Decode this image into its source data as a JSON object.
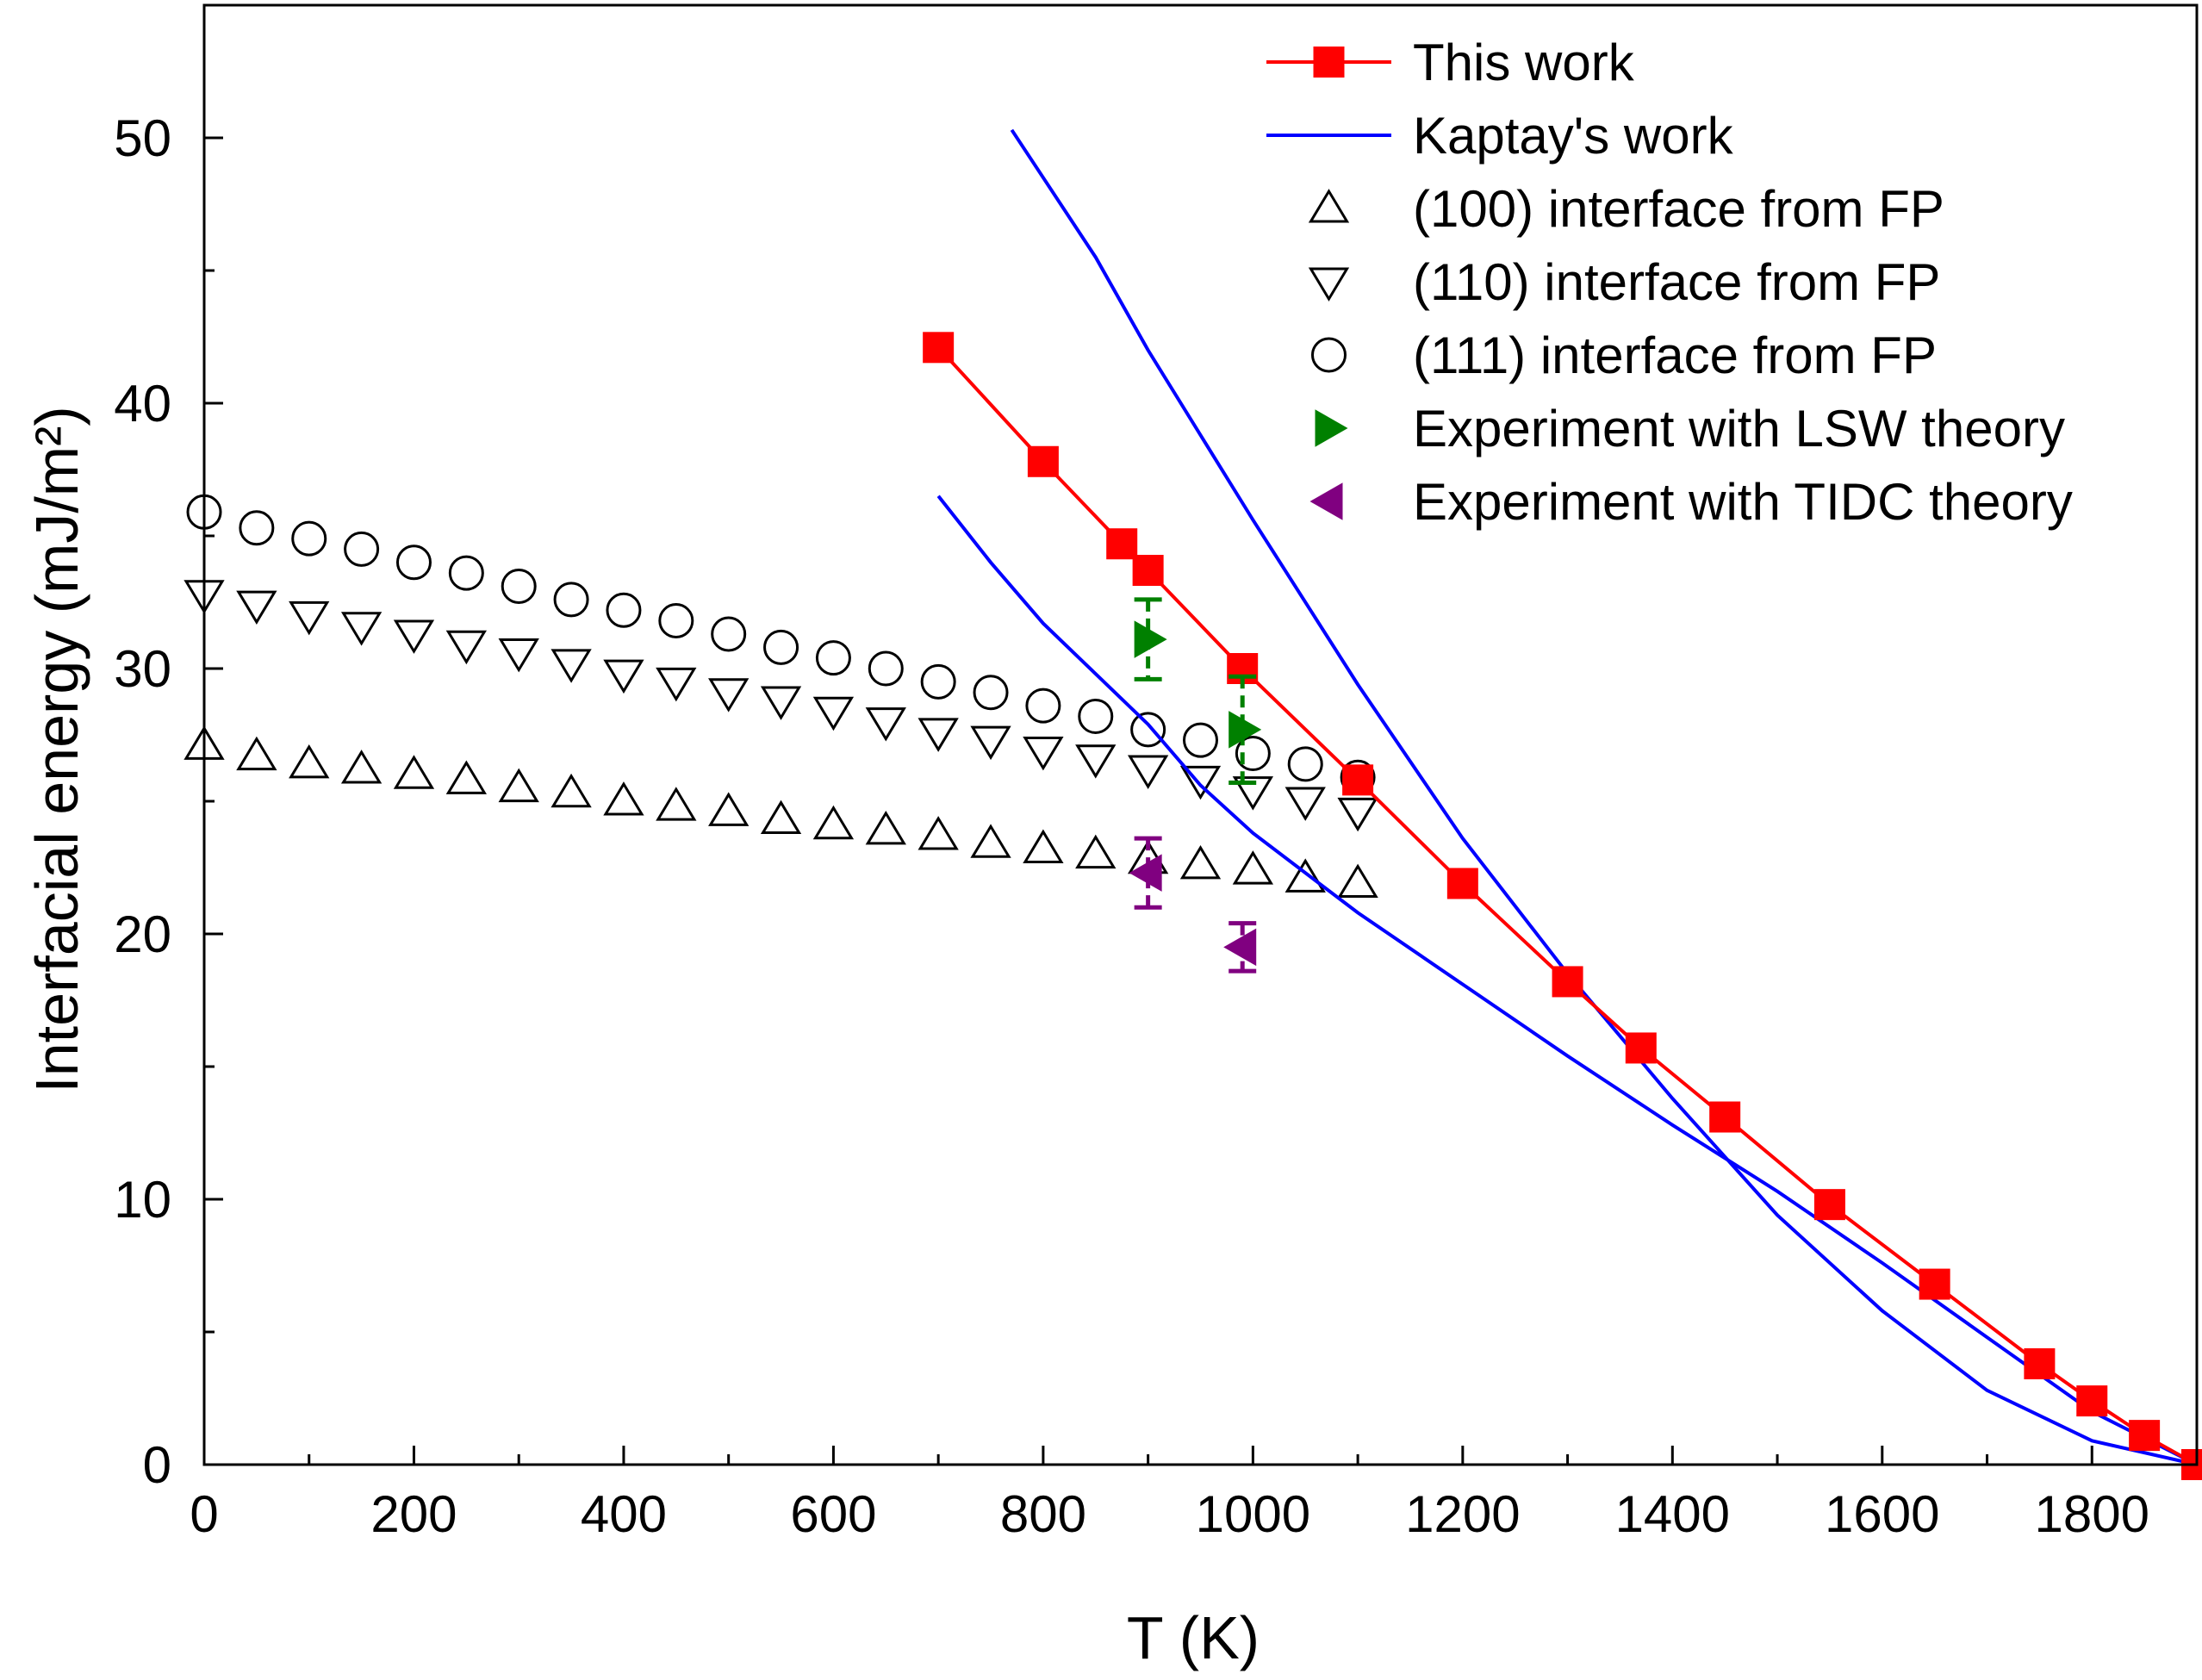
{
  "chart_data": {
    "type": "scatter",
    "xlabel": "T (K)",
    "ylabel": "Interfacial energy (mJ/m²)",
    "xlim": [
      0,
      1900
    ],
    "ylim": [
      0,
      55
    ],
    "x_ticks": [
      0,
      200,
      400,
      600,
      800,
      1000,
      1200,
      1400,
      1600,
      1800
    ],
    "y_ticks": [
      0,
      10,
      20,
      30,
      40,
      50
    ],
    "legend_position": "top-right",
    "series": [
      {
        "name": "This work",
        "kind": "line-marker",
        "marker": "square",
        "color": "#ff0000",
        "points": [
          [
            700,
            42.1
          ],
          [
            800,
            37.8
          ],
          [
            875,
            34.7
          ],
          [
            900,
            33.7
          ],
          [
            990,
            30.0
          ],
          [
            1100,
            25.8
          ],
          [
            1200,
            21.9
          ],
          [
            1300,
            18.2
          ],
          [
            1370,
            15.7
          ],
          [
            1450,
            13.1
          ],
          [
            1550,
            9.8
          ],
          [
            1650,
            6.8
          ],
          [
            1750,
            3.8
          ],
          [
            1800,
            2.4
          ],
          [
            1850,
            1.1
          ],
          [
            1900,
            0.0
          ]
        ]
      },
      {
        "name": "Kaptay's work",
        "kind": "line",
        "color": "#0000ff",
        "curves": [
          [
            [
              770,
              50.3
            ],
            [
              800,
              48.5
            ],
            [
              850,
              45.5
            ],
            [
              900,
              42.0
            ],
            [
              950,
              38.8
            ],
            [
              1000,
              35.6
            ],
            [
              1100,
              29.4
            ],
            [
              1200,
              23.6
            ],
            [
              1300,
              18.5
            ],
            [
              1400,
              13.8
            ],
            [
              1500,
              9.4
            ],
            [
              1600,
              5.8
            ],
            [
              1700,
              2.8
            ],
            [
              1800,
              0.9
            ],
            [
              1900,
              0.0
            ]
          ],
          [
            [
              700,
              36.5
            ],
            [
              750,
              34.0
            ],
            [
              800,
              31.7
            ],
            [
              850,
              29.8
            ],
            [
              900,
              27.9
            ],
            [
              950,
              25.6
            ],
            [
              1000,
              23.8
            ],
            [
              1100,
              20.8
            ],
            [
              1200,
              18.1
            ],
            [
              1300,
              15.4
            ],
            [
              1400,
              12.8
            ],
            [
              1500,
              10.3
            ],
            [
              1600,
              7.6
            ],
            [
              1700,
              4.8
            ],
            [
              1800,
              2.0
            ],
            [
              1900,
              0.0
            ]
          ]
        ]
      },
      {
        "name": "(100) interface from FP",
        "kind": "marker",
        "marker": "triangle-up-open",
        "color": "#000000",
        "points": [
          [
            0,
            27.1
          ],
          [
            50,
            26.7
          ],
          [
            100,
            26.4
          ],
          [
            150,
            26.2
          ],
          [
            200,
            26.0
          ],
          [
            250,
            25.8
          ],
          [
            300,
            25.5
          ],
          [
            350,
            25.3
          ],
          [
            400,
            25.0
          ],
          [
            450,
            24.8
          ],
          [
            500,
            24.6
          ],
          [
            550,
            24.3
          ],
          [
            600,
            24.1
          ],
          [
            650,
            23.9
          ],
          [
            700,
            23.7
          ],
          [
            750,
            23.4
          ],
          [
            800,
            23.2
          ],
          [
            850,
            23.0
          ],
          [
            900,
            22.8
          ],
          [
            950,
            22.6
          ],
          [
            1000,
            22.4
          ],
          [
            1050,
            22.1
          ],
          [
            1100,
            21.9
          ]
        ]
      },
      {
        "name": "(110) interface from FP",
        "kind": "marker",
        "marker": "triangle-down-open",
        "color": "#000000",
        "points": [
          [
            0,
            32.8
          ],
          [
            50,
            32.4
          ],
          [
            100,
            32.0
          ],
          [
            150,
            31.6
          ],
          [
            200,
            31.3
          ],
          [
            250,
            30.9
          ],
          [
            300,
            30.6
          ],
          [
            350,
            30.2
          ],
          [
            400,
            29.8
          ],
          [
            450,
            29.5
          ],
          [
            500,
            29.1
          ],
          [
            550,
            28.8
          ],
          [
            600,
            28.4
          ],
          [
            650,
            28.0
          ],
          [
            700,
            27.6
          ],
          [
            750,
            27.3
          ],
          [
            800,
            26.9
          ],
          [
            850,
            26.6
          ],
          [
            900,
            26.2
          ],
          [
            950,
            25.8
          ],
          [
            1000,
            25.4
          ],
          [
            1050,
            25.0
          ],
          [
            1100,
            24.6
          ]
        ]
      },
      {
        "name": "(111) interface from FP",
        "kind": "marker",
        "marker": "circle-open",
        "color": "#000000",
        "points": [
          [
            0,
            35.9
          ],
          [
            50,
            35.3
          ],
          [
            100,
            34.9
          ],
          [
            150,
            34.5
          ],
          [
            200,
            34.0
          ],
          [
            250,
            33.6
          ],
          [
            300,
            33.1
          ],
          [
            350,
            32.6
          ],
          [
            400,
            32.2
          ],
          [
            450,
            31.8
          ],
          [
            500,
            31.3
          ],
          [
            550,
            30.8
          ],
          [
            600,
            30.4
          ],
          [
            650,
            30.0
          ],
          [
            700,
            29.5
          ],
          [
            750,
            29.1
          ],
          [
            800,
            28.6
          ],
          [
            850,
            28.2
          ],
          [
            900,
            27.7
          ],
          [
            950,
            27.3
          ],
          [
            1000,
            26.8
          ],
          [
            1050,
            26.4
          ],
          [
            1100,
            25.9
          ]
        ]
      },
      {
        "name": "Experiment with LSW theory",
        "kind": "errorbar",
        "marker": "triangle-right",
        "color": "#008000",
        "points": [
          [
            900,
            31.1,
            1.5
          ],
          [
            990,
            27.7,
            2.0
          ]
        ]
      },
      {
        "name": "Experiment with TIDC theory",
        "kind": "errorbar",
        "marker": "triangle-left",
        "color": "#800080",
        "points": [
          [
            900,
            22.3,
            1.3
          ],
          [
            990,
            19.5,
            0.9
          ]
        ]
      }
    ]
  }
}
